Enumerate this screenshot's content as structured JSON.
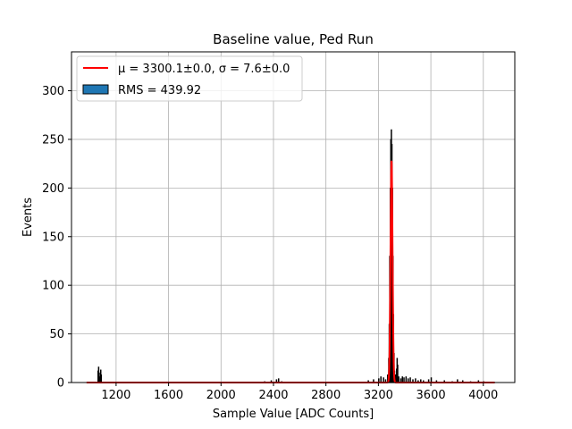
{
  "chart_data": {
    "type": "histogram",
    "title": "Baseline value, Ped Run",
    "xlabel": "Sample Value [ADC Counts]",
    "ylabel": "Events",
    "xlim": [
      860,
      4240
    ],
    "ylim": [
      0,
      340
    ],
    "xticks": [
      1200,
      1600,
      2000,
      2400,
      2800,
      3200,
      3600,
      4000
    ],
    "yticks": [
      0,
      50,
      100,
      150,
      200,
      250,
      300
    ],
    "grid": true,
    "legend": {
      "placement": "top-left",
      "fit_label": "μ = 3300.1±0.0, σ = 7.6±0.0",
      "hist_label": "RMS = 439.92"
    },
    "histogram": {
      "bin_width": 4,
      "baseline_start": 975,
      "baseline_end": 4090,
      "color": "#000000",
      "spikes": [
        {
          "x": 1060,
          "y": 12
        },
        {
          "x": 1064,
          "y": 16
        },
        {
          "x": 1068,
          "y": 10
        },
        {
          "x": 1076,
          "y": 6
        },
        {
          "x": 1080,
          "y": 13
        },
        {
          "x": 1084,
          "y": 8
        },
        {
          "x": 2330,
          "y": 1
        },
        {
          "x": 2380,
          "y": 2
        },
        {
          "x": 2420,
          "y": 3
        },
        {
          "x": 2436,
          "y": 4
        },
        {
          "x": 2460,
          "y": 1
        },
        {
          "x": 3120,
          "y": 2
        },
        {
          "x": 3160,
          "y": 3
        },
        {
          "x": 3200,
          "y": 4
        },
        {
          "x": 3216,
          "y": 6
        },
        {
          "x": 3236,
          "y": 5
        },
        {
          "x": 3252,
          "y": 3
        },
        {
          "x": 3268,
          "y": 8
        },
        {
          "x": 3276,
          "y": 25
        },
        {
          "x": 3280,
          "y": 60
        },
        {
          "x": 3284,
          "y": 130
        },
        {
          "x": 3288,
          "y": 200
        },
        {
          "x": 3292,
          "y": 250
        },
        {
          "x": 3296,
          "y": 260
        },
        {
          "x": 3300,
          "y": 245
        },
        {
          "x": 3304,
          "y": 200
        },
        {
          "x": 3308,
          "y": 130
        },
        {
          "x": 3312,
          "y": 70
        },
        {
          "x": 3316,
          "y": 30
        },
        {
          "x": 3320,
          "y": 12
        },
        {
          "x": 3328,
          "y": 8
        },
        {
          "x": 3336,
          "y": 14
        },
        {
          "x": 3340,
          "y": 25
        },
        {
          "x": 3344,
          "y": 18
        },
        {
          "x": 3352,
          "y": 6
        },
        {
          "x": 3368,
          "y": 4
        },
        {
          "x": 3380,
          "y": 6
        },
        {
          "x": 3392,
          "y": 5
        },
        {
          "x": 3408,
          "y": 6
        },
        {
          "x": 3424,
          "y": 4
        },
        {
          "x": 3440,
          "y": 5
        },
        {
          "x": 3460,
          "y": 3
        },
        {
          "x": 3480,
          "y": 4
        },
        {
          "x": 3500,
          "y": 2
        },
        {
          "x": 3520,
          "y": 3
        },
        {
          "x": 3540,
          "y": 2
        },
        {
          "x": 3580,
          "y": 3
        },
        {
          "x": 3600,
          "y": 5
        },
        {
          "x": 3640,
          "y": 2
        },
        {
          "x": 3700,
          "y": 2
        },
        {
          "x": 3760,
          "y": 1
        },
        {
          "x": 3800,
          "y": 3
        },
        {
          "x": 3840,
          "y": 2
        },
        {
          "x": 3900,
          "y": 1
        },
        {
          "x": 3960,
          "y": 2
        },
        {
          "x": 4000,
          "y": 1
        }
      ]
    },
    "fit": {
      "color": "#ff0000",
      "mu": 3300.1,
      "sigma": 7.6,
      "amplitude": 228,
      "x_start": 975,
      "x_end": 4090
    }
  }
}
